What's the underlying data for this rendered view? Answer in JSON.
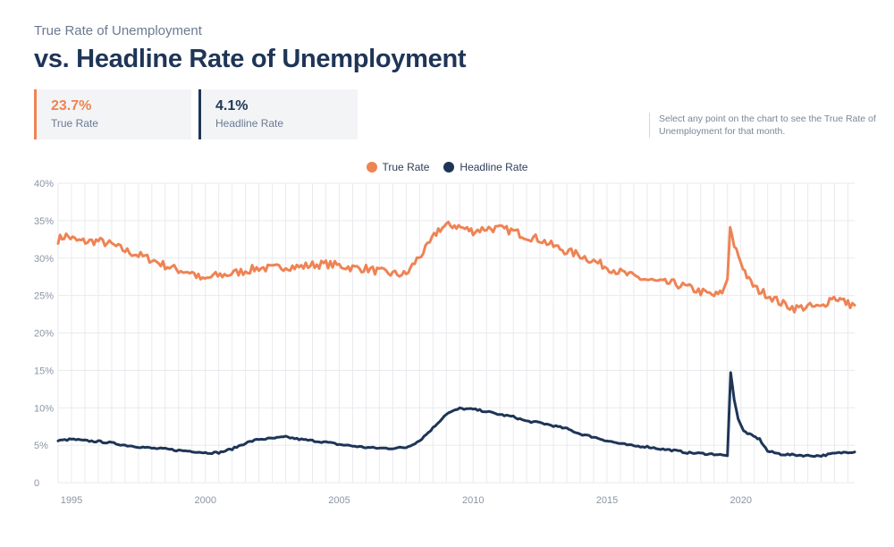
{
  "header": {
    "subtitle": "True Rate of Unemployment",
    "title": "vs. Headline Rate of Unemployment"
  },
  "stats": {
    "true_rate": {
      "value": "23.7%",
      "label": "True Rate",
      "color": "#ef8354"
    },
    "headline_rate": {
      "value": "4.1%",
      "label": "Headline Rate",
      "color": "#1e3557"
    }
  },
  "hint": "Select any point on the chart to see the True Rate of Unemployment for that month.",
  "chart_data": {
    "type": "line",
    "title": "True Rate of Unemployment vs. Headline Rate of Unemployment",
    "xlabel": "",
    "ylabel": "",
    "xlim": [
      1994.5,
      2024.25
    ],
    "ylim": [
      0,
      40
    ],
    "x_ticks": [
      1995,
      2000,
      2005,
      2010,
      2015,
      2020
    ],
    "x_tick_labels": [
      "1995",
      "2000",
      "2005",
      "2010",
      "2015",
      "2020"
    ],
    "y_ticks": [
      0,
      5,
      10,
      15,
      20,
      25,
      30,
      35,
      40
    ],
    "y_tick_labels": [
      "0",
      "5%",
      "10%",
      "15%",
      "20%",
      "25%",
      "30%",
      "35%",
      "40%"
    ],
    "grid": true,
    "legend": "top-center",
    "series": [
      {
        "name": "True Rate",
        "color": "#ef8354",
        "x": [
          1994.5,
          1994.8,
          1995.2,
          1995.6,
          1996.0,
          1996.5,
          1997.0,
          1997.5,
          1998.0,
          1998.5,
          1999.0,
          1999.5,
          1999.9,
          2000.3,
          2000.8,
          2001.5,
          2002.0,
          2002.5,
          2003.0,
          2003.5,
          2004.0,
          2004.5,
          2005.0,
          2005.5,
          2006.0,
          2006.5,
          2007.0,
          2007.5,
          2007.9,
          2008.3,
          2008.7,
          2009.0,
          2009.3,
          2009.7,
          2010.0,
          2010.5,
          2011.0,
          2011.5,
          2012.0,
          2012.5,
          2013.0,
          2013.5,
          2014.0,
          2014.5,
          2015.0,
          2015.5,
          2016.0,
          2016.5,
          2017.0,
          2017.5,
          2018.0,
          2018.5,
          2019.0,
          2019.3,
          2019.5,
          2019.6,
          2019.75,
          2020.0,
          2020.3,
          2020.6,
          2021.0,
          2021.5,
          2022.0,
          2022.5,
          2023.0,
          2023.4,
          2023.7,
          2024.0,
          2024.25
        ],
        "values": [
          32.5,
          33.0,
          32.3,
          32.2,
          32.3,
          31.8,
          31.0,
          30.4,
          29.8,
          29.0,
          28.4,
          28.1,
          27.0,
          27.6,
          27.8,
          28.3,
          28.7,
          28.6,
          28.9,
          28.8,
          29.1,
          29.2,
          29.0,
          28.7,
          28.6,
          28.2,
          27.9,
          27.8,
          29.8,
          31.5,
          33.8,
          34.3,
          34.4,
          33.9,
          33.6,
          34.0,
          33.9,
          33.6,
          32.9,
          32.5,
          31.6,
          30.9,
          30.4,
          29.6,
          28.8,
          28.1,
          27.5,
          27.1,
          26.7,
          26.6,
          26.1,
          25.5,
          25.0,
          25.3,
          27.2,
          34.1,
          31.8,
          29.5,
          27.0,
          25.8,
          25.1,
          24.0,
          23.3,
          23.5,
          23.4,
          24.8,
          24.5,
          23.9,
          23.7
        ]
      },
      {
        "name": "Headline Rate",
        "color": "#1e3557",
        "x": [
          1994.5,
          1995.0,
          1995.5,
          1996.0,
          1996.5,
          1997.0,
          1997.5,
          1998.0,
          1998.5,
          1999.0,
          1999.5,
          2000.0,
          2000.5,
          2001.0,
          2001.5,
          2002.0,
          2002.5,
          2003.0,
          2003.5,
          2004.0,
          2004.5,
          2005.0,
          2005.5,
          2006.0,
          2006.5,
          2007.0,
          2007.5,
          2008.0,
          2008.5,
          2009.0,
          2009.5,
          2010.0,
          2010.5,
          2011.0,
          2011.5,
          2012.0,
          2012.5,
          2013.0,
          2013.5,
          2014.0,
          2014.5,
          2015.0,
          2015.5,
          2016.0,
          2016.5,
          2017.0,
          2017.5,
          2018.0,
          2018.5,
          2019.0,
          2019.3,
          2019.5,
          2019.62,
          2019.75,
          2019.9,
          2020.1,
          2020.4,
          2020.7,
          2021.0,
          2021.5,
          2022.0,
          2022.5,
          2023.0,
          2023.5,
          2024.0,
          2024.25
        ],
        "values": [
          5.6,
          5.8,
          5.6,
          5.5,
          5.3,
          5.0,
          4.8,
          4.6,
          4.5,
          4.3,
          4.2,
          4.0,
          4.0,
          4.5,
          5.3,
          5.8,
          5.9,
          6.1,
          5.8,
          5.6,
          5.4,
          5.1,
          4.9,
          4.7,
          4.6,
          4.6,
          4.7,
          5.6,
          7.3,
          9.2,
          9.9,
          9.8,
          9.5,
          9.1,
          8.8,
          8.2,
          8.0,
          7.6,
          7.2,
          6.5,
          6.1,
          5.6,
          5.2,
          4.9,
          4.8,
          4.5,
          4.3,
          4.0,
          3.9,
          3.8,
          3.7,
          3.6,
          14.7,
          11.1,
          8.5,
          6.9,
          6.3,
          5.8,
          4.2,
          3.8,
          3.7,
          3.6,
          3.6,
          3.9,
          4.1,
          4.1
        ]
      }
    ]
  }
}
